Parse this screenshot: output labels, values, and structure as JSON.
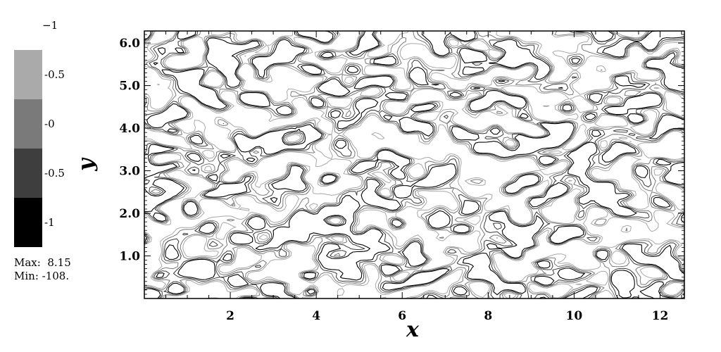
{
  "chart_data": {
    "type": "contour",
    "xlabel": "x",
    "ylabel": "y",
    "xlim": [
      0,
      12.566
    ],
    "ylim": [
      0,
      6.283
    ],
    "x_ticks": [
      {
        "value": 2,
        "label": "2"
      },
      {
        "value": 4,
        "label": "4"
      },
      {
        "value": 6,
        "label": "6"
      },
      {
        "value": 8,
        "label": "8"
      },
      {
        "value": 10,
        "label": "10"
      },
      {
        "value": 12,
        "label": "12"
      }
    ],
    "y_ticks": [
      {
        "value": 1.0,
        "label": "1.0"
      },
      {
        "value": 2.0,
        "label": "2.0"
      },
      {
        "value": 3.0,
        "label": "3.0"
      },
      {
        "value": 4.0,
        "label": "4.0"
      },
      {
        "value": 5.0,
        "label": "5.0"
      },
      {
        "value": 6.0,
        "label": "6.0"
      }
    ],
    "contour_levels": [
      -1,
      -0.5,
      0,
      0.5
    ],
    "colorbar": {
      "labels": [
        "−1",
        "-0.5",
        "-0",
        "-0.5",
        "-1"
      ],
      "band_colors": [
        "#aaaaaa",
        "#7a7a7a",
        "#3e3e3e",
        "#000000"
      ],
      "placement": "left"
    },
    "line_colors": [
      "#000000",
      "#3a3a3a",
      "#7a7a7a",
      "#a8a8a8"
    ],
    "grid": false,
    "stats": {
      "max_label": "Max:",
      "max_value": "8.15",
      "min_label": "Min:",
      "min_value": "-108."
    }
  }
}
